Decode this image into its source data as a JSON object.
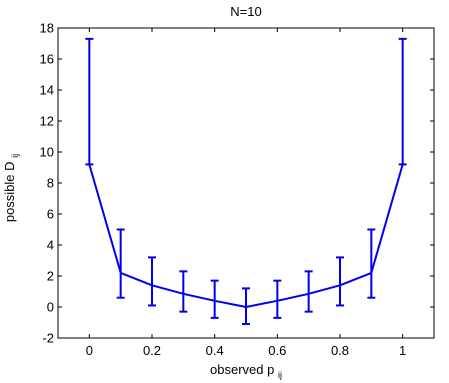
{
  "chart_data": {
    "type": "line",
    "title": "N=10",
    "xlabel": {
      "main": "observed p",
      "sub": "ij"
    },
    "ylabel": {
      "main": "possible D",
      "sub": "ij"
    },
    "xlim": [
      -0.1,
      1.1
    ],
    "ylim": [
      -2,
      18
    ],
    "xticks": [
      0,
      0.2,
      0.4,
      0.6,
      0.8,
      1
    ],
    "xtick_labels": [
      "0",
      "0.2",
      "0.4",
      "0.6",
      "0.8",
      "1"
    ],
    "yticks": [
      -2,
      0,
      2,
      4,
      6,
      8,
      10,
      12,
      14,
      16,
      18
    ],
    "ytick_labels": [
      "-2",
      "0",
      "2",
      "4",
      "6",
      "8",
      "10",
      "12",
      "14",
      "16",
      "18"
    ],
    "grid": false,
    "series": [
      {
        "color": "#0000ee",
        "points": [
          {
            "x": 0.0,
            "y": 9.2,
            "lower": 9.2,
            "upper": 17.3
          },
          {
            "x": 0.1,
            "y": 2.2,
            "lower": 0.6,
            "upper": 5.0
          },
          {
            "x": 0.2,
            "y": 1.4,
            "lower": 0.1,
            "upper": 3.2
          },
          {
            "x": 0.3,
            "y": 0.85,
            "lower": -0.3,
            "upper": 2.3
          },
          {
            "x": 0.4,
            "y": 0.4,
            "lower": -0.7,
            "upper": 1.7
          },
          {
            "x": 0.5,
            "y": 0.0,
            "lower": -1.1,
            "upper": 1.2
          },
          {
            "x": 0.6,
            "y": 0.4,
            "lower": -0.7,
            "upper": 1.7
          },
          {
            "x": 0.7,
            "y": 0.85,
            "lower": -0.3,
            "upper": 2.3
          },
          {
            "x": 0.8,
            "y": 1.4,
            "lower": 0.1,
            "upper": 3.2
          },
          {
            "x": 0.9,
            "y": 2.2,
            "lower": 0.6,
            "upper": 5.0
          },
          {
            "x": 1.0,
            "y": 9.2,
            "lower": 9.2,
            "upper": 17.3
          }
        ]
      }
    ]
  }
}
